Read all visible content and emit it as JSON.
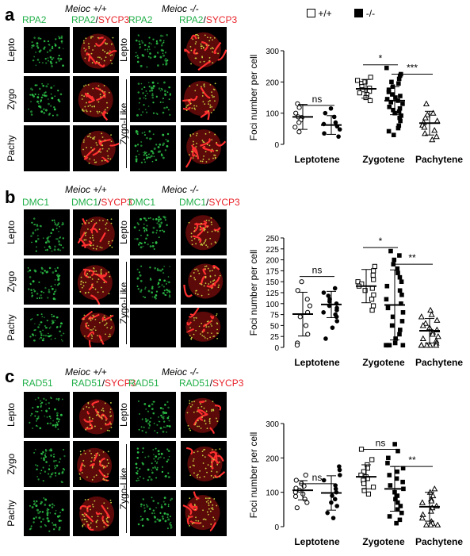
{
  "legend": {
    "wt": "+/+",
    "ko": "-/-"
  },
  "panels": [
    {
      "letter": "a",
      "wt_genotype": "Meioc +/+",
      "ko_genotype": "Meioc -/-",
      "col_headers": [
        {
          "parts": [
            {
              "t": "RPA2",
              "c": "g"
            }
          ]
        },
        {
          "parts": [
            {
              "t": "RPA2",
              "c": "g"
            },
            {
              "t": "/",
              "c": "k"
            },
            {
              "t": "SYCP3",
              "c": "r"
            }
          ]
        },
        {
          "parts": [
            {
              "t": "RPA2",
              "c": "g"
            }
          ]
        },
        {
          "parts": [
            {
              "t": "RPA2",
              "c": "g"
            },
            {
              "t": "/",
              "c": "k"
            },
            {
              "t": "SYCP3",
              "c": "r"
            }
          ]
        }
      ],
      "wt_rows": [
        "Lepto",
        "Zygo",
        "Pachy"
      ],
      "ko_rows": [
        "Lepto",
        "Zygo-Like"
      ]
    },
    {
      "letter": "b",
      "wt_genotype": "Meioc +/+",
      "ko_genotype": "Meioc -/-",
      "col_headers": [
        {
          "parts": [
            {
              "t": "DMC1",
              "c": "g"
            }
          ]
        },
        {
          "parts": [
            {
              "t": "DMC1",
              "c": "g"
            },
            {
              "t": "/",
              "c": "k"
            },
            {
              "t": "SYCP3",
              "c": "r"
            }
          ]
        },
        {
          "parts": [
            {
              "t": "DMC1",
              "c": "g"
            }
          ]
        },
        {
          "parts": [
            {
              "t": "DMC1",
              "c": "g"
            },
            {
              "t": "/",
              "c": "k"
            },
            {
              "t": "SYCP3",
              "c": "r"
            }
          ]
        }
      ],
      "wt_rows": [
        "Lepto",
        "Zygo",
        "Pachy"
      ],
      "ko_rows": [
        "Lepto",
        "Zygo-Like"
      ]
    },
    {
      "letter": "c",
      "wt_genotype": "Meioc +/+",
      "ko_genotype": "Meioc -/-",
      "col_headers": [
        {
          "parts": [
            {
              "t": "RAD51",
              "c": "g"
            }
          ]
        },
        {
          "parts": [
            {
              "t": "RAD51",
              "c": "g"
            },
            {
              "t": "/",
              "c": "k"
            },
            {
              "t": "SYCP3",
              "c": "r"
            }
          ]
        },
        {
          "parts": [
            {
              "t": "RAD51",
              "c": "g"
            }
          ]
        },
        {
          "parts": [
            {
              "t": "RAD51",
              "c": "g"
            },
            {
              "t": "/",
              "c": "k"
            },
            {
              "t": "SYCP3",
              "c": "r"
            }
          ]
        }
      ],
      "wt_rows": [
        "Lepto",
        "Zygo",
        "Pachy"
      ],
      "ko_rows": [
        "Lepto",
        "Zygo-Like"
      ]
    }
  ],
  "chart_data": [
    {
      "type": "scatter",
      "ylabel": "Foci number per cell",
      "ylim": [
        0,
        300
      ],
      "yticks": [
        0,
        100,
        200,
        300
      ],
      "categories": [
        "Leptotene",
        "Zygotene",
        "Pachytene"
      ],
      "groups": [
        {
          "category": "Leptotene",
          "genotype": "+/+",
          "marker": "circle",
          "mean": 88,
          "sd": 40,
          "values": [
            130,
            118,
            100,
            88,
            86,
            78,
            70,
            55,
            40
          ]
        },
        {
          "category": "Leptotene",
          "genotype": "-/-",
          "marker": "filled-circle",
          "mean": 62,
          "sd": 30,
          "values": [
            115,
            100,
            88,
            70,
            65,
            58,
            48,
            35,
            25
          ]
        },
        {
          "category": "Zygotene",
          "genotype": "+/+",
          "marker": "square",
          "mean": 178,
          "sd": 30,
          "values": [
            215,
            205,
            195,
            185,
            180,
            175,
            170,
            165,
            160,
            150,
            140,
            200
          ]
        },
        {
          "category": "Zygotene",
          "genotype": "-/-",
          "marker": "filled-square",
          "mean": 140,
          "sd": 45,
          "values": [
            245,
            225,
            220,
            210,
            200,
            195,
            185,
            175,
            168,
            160,
            155,
            150,
            145,
            140,
            135,
            130,
            120,
            115,
            110,
            105,
            100,
            92,
            85,
            75,
            60,
            52,
            42,
            30
          ]
        },
        {
          "category": "Pachytene",
          "genotype": "-/-",
          "marker": "triangle",
          "mean": 68,
          "sd": 38,
          "values": [
            130,
            100,
            95,
            85,
            75,
            70,
            62,
            55,
            45,
            35,
            25,
            15
          ]
        }
      ],
      "brackets": [
        {
          "from": 0,
          "to": 1,
          "label": "ns",
          "y": 125
        },
        {
          "from": 2,
          "to": 3,
          "label": "*",
          "y": 255
        },
        {
          "from": 3,
          "to": 4,
          "label": "***",
          "y": 225
        }
      ]
    },
    {
      "type": "scatter",
      "ylabel": "Foci number per cell",
      "ylim": [
        0,
        250
      ],
      "yticks": [
        0,
        25,
        50,
        75,
        100,
        125,
        150,
        175,
        200,
        225,
        250
      ],
      "categories": [
        "Leptotene",
        "Zygotene",
        "Pachytene"
      ],
      "groups": [
        {
          "category": "Leptotene",
          "genotype": "+/+",
          "marker": "circle",
          "mean": 76,
          "sd": 50,
          "values": [
            150,
            130,
            110,
            95,
            80,
            70,
            50,
            30,
            10,
            5
          ]
        },
        {
          "category": "Leptotene",
          "genotype": "-/-",
          "marker": "filled-circle",
          "mean": 98,
          "sd": 30,
          "values": [
            135,
            125,
            118,
            110,
            105,
            100,
            95,
            90,
            85,
            80,
            75,
            70,
            60,
            45,
            20
          ]
        },
        {
          "category": "Zygotene",
          "genotype": "+/+",
          "marker": "square",
          "mean": 140,
          "sd": 38,
          "values": [
            185,
            175,
            165,
            155,
            150,
            145,
            140,
            135,
            130,
            120,
            110,
            95,
            85
          ]
        },
        {
          "category": "Zygotene",
          "genotype": "-/-",
          "marker": "filled-square",
          "mean": 97,
          "sd": 80,
          "values": [
            220,
            210,
            200,
            190,
            180,
            170,
            160,
            150,
            140,
            130,
            120,
            110,
            100,
            90,
            80,
            70,
            60,
            50,
            40,
            30,
            20,
            10,
            5,
            5,
            5,
            5,
            5
          ]
        },
        {
          "category": "Pachytene",
          "genotype": "-/-",
          "marker": "triangle",
          "mean": 38,
          "sd": 28,
          "values": [
            85,
            75,
            70,
            62,
            55,
            50,
            45,
            40,
            35,
            30,
            25,
            20,
            15,
            10,
            5,
            5,
            5,
            5,
            5
          ]
        }
      ],
      "brackets": [
        {
          "from": 0,
          "to": 1,
          "label": "ns",
          "y": 162
        },
        {
          "from": 2,
          "to": 3,
          "label": "*",
          "y": 228
        },
        {
          "from": 3,
          "to": 4,
          "label": "**",
          "y": 190
        }
      ]
    },
    {
      "type": "scatter",
      "ylabel": "Foci number per cell",
      "ylim": [
        0,
        300
      ],
      "yticks": [
        0,
        100,
        200,
        300
      ],
      "categories": [
        "Leptotene",
        "Zygotene",
        "Pachytene"
      ],
      "groups": [
        {
          "category": "Leptotene",
          "genotype": "+/+",
          "marker": "circle",
          "mean": 106,
          "sd": 28,
          "values": [
            150,
            135,
            125,
            118,
            112,
            106,
            100,
            95,
            88,
            80,
            70,
            55
          ]
        },
        {
          "category": "Leptotene",
          "genotype": "-/-",
          "marker": "filled-circle",
          "mean": 98,
          "sd": 50,
          "values": [
            175,
            165,
            150,
            135,
            120,
            110,
            100,
            90,
            80,
            70,
            60,
            40,
            25
          ]
        },
        {
          "category": "Zygotene",
          "genotype": "+/+",
          "marker": "square",
          "mean": 145,
          "sd": 35,
          "values": [
            225,
            195,
            180,
            170,
            160,
            150,
            145,
            140,
            135,
            125,
            115,
            105,
            95
          ]
        },
        {
          "category": "Zygotene",
          "genotype": "-/-",
          "marker": "filled-square",
          "mean": 110,
          "sd": 65,
          "values": [
            240,
            220,
            200,
            185,
            170,
            160,
            150,
            140,
            130,
            120,
            110,
            100,
            90,
            80,
            70,
            60,
            50,
            40,
            30,
            20,
            10
          ]
        },
        {
          "category": "Pachytene",
          "genotype": "-/-",
          "marker": "triangle",
          "mean": 58,
          "sd": 42,
          "values": [
            110,
            100,
            90,
            80,
            75,
            70,
            60,
            55,
            45,
            35,
            25,
            15,
            10,
            5,
            5,
            5
          ]
        }
      ],
      "brackets": [
        {
          "from": 0,
          "to": 1,
          "label": "ns",
          "y": 125
        },
        {
          "from": 2,
          "to": 3,
          "label": "ns",
          "y": 225
        },
        {
          "from": 3,
          "to": 4,
          "label": "**",
          "y": 175
        }
      ]
    }
  ]
}
